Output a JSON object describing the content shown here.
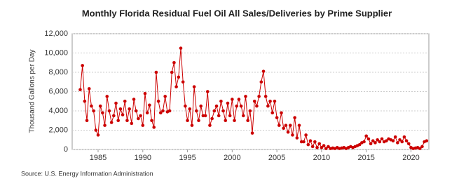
{
  "chart_data": {
    "type": "line",
    "title": "Monthly Florida Residual Fuel Oil All Sales/Deliveries by Prime Supplier",
    "y_label": "Thousand Gallons per Day",
    "source": "Source: U.S. Energy Information Administration",
    "color": "#cc0000",
    "grid": true,
    "xlim": [
      1982.1,
      2022
    ],
    "xticks": [
      1985,
      1990,
      1995,
      2000,
      2005,
      2010,
      2015,
      2020
    ],
    "ylim": [
      0,
      12000
    ],
    "yticks": [
      {
        "value": 0,
        "label": "0"
      },
      {
        "value": 2000,
        "label": "2,000"
      },
      {
        "value": 4000,
        "label": "4,000"
      },
      {
        "value": 6000,
        "label": "6,000"
      },
      {
        "value": 8000,
        "label": "8,000"
      },
      {
        "value": 10000,
        "label": "10,000"
      },
      {
        "value": 12000,
        "label": "12,000"
      }
    ],
    "x": [
      1983,
      1983.25,
      1983.5,
      1983.75,
      1984,
      1984.25,
      1984.5,
      1984.75,
      1985,
      1985.25,
      1985.5,
      1985.75,
      1986,
      1986.25,
      1986.5,
      1986.75,
      1987,
      1987.25,
      1987.5,
      1987.75,
      1988,
      1988.25,
      1988.5,
      1988.75,
      1989,
      1989.25,
      1989.5,
      1989.75,
      1990,
      1990.25,
      1990.5,
      1990.75,
      1991,
      1991.25,
      1991.5,
      1991.75,
      1992,
      1992.25,
      1992.5,
      1992.75,
      1993,
      1993.25,
      1993.5,
      1993.75,
      1994,
      1994.25,
      1994.5,
      1994.75,
      1995,
      1995.25,
      1995.5,
      1995.75,
      1996,
      1996.25,
      1996.5,
      1996.75,
      1997,
      1997.25,
      1997.5,
      1997.75,
      1998,
      1998.25,
      1998.5,
      1998.75,
      1999,
      1999.25,
      1999.5,
      1999.75,
      2000,
      2000.25,
      2000.5,
      2000.75,
      2001,
      2001.25,
      2001.5,
      2001.75,
      2002,
      2002.25,
      2002.5,
      2002.75,
      2003,
      2003.25,
      2003.5,
      2003.75,
      2004,
      2004.25,
      2004.5,
      2004.75,
      2005,
      2005.25,
      2005.5,
      2005.75,
      2006,
      2006.25,
      2006.5,
      2006.75,
      2007,
      2007.25,
      2007.5,
      2007.75,
      2008,
      2008.25,
      2008.5,
      2008.75,
      2009,
      2009.25,
      2009.5,
      2009.75,
      2010,
      2010.25,
      2010.5,
      2010.75,
      2011,
      2011.25,
      2011.5,
      2011.75,
      2012,
      2012.25,
      2012.5,
      2012.75,
      2013,
      2013.25,
      2013.5,
      2013.75,
      2014,
      2014.25,
      2014.5,
      2014.75,
      2015,
      2015.25,
      2015.5,
      2015.75,
      2016,
      2016.25,
      2016.5,
      2016.75,
      2017,
      2017.25,
      2017.5,
      2017.75,
      2018,
      2018.25,
      2018.5,
      2018.75,
      2019,
      2019.25,
      2019.5,
      2019.75,
      2020,
      2020.25,
      2020.5,
      2020.75,
      2021,
      2021.25,
      2021.5,
      2021.75
    ],
    "values": [
      6200,
      8700,
      5000,
      3000,
      6300,
      4500,
      4000,
      2000,
      1500,
      4500,
      3800,
      2500,
      5500,
      4000,
      2800,
      3500,
      4800,
      3000,
      4200,
      3600,
      5000,
      3000,
      4200,
      2700,
      5200,
      4000,
      3200,
      3500,
      2500,
      5800,
      3800,
      4600,
      3000,
      2300,
      8000,
      5000,
      3800,
      4000,
      5500,
      3900,
      4000,
      8000,
      9000,
      6500,
      7500,
      10500,
      7000,
      4500,
      3000,
      4200,
      2500,
      6500,
      4000,
      3000,
      4500,
      3500,
      3500,
      6000,
      2500,
      3200,
      4000,
      4500,
      3500,
      5000,
      4000,
      3000,
      4800,
      3500,
      5200,
      3000,
      4500,
      5200,
      4500,
      3500,
      5500,
      3000,
      4000,
      1700,
      5000,
      4500,
      5500,
      7000,
      8100,
      5500,
      4500,
      5000,
      3800,
      5000,
      3300,
      2500,
      3800,
      2200,
      2500,
      1800,
      2500,
      1500,
      3300,
      1200,
      2500,
      800,
      800,
      1500,
      500,
      900,
      300,
      800,
      200,
      600,
      200,
      400,
      100,
      300,
      100,
      150,
      100,
      200,
      100,
      150,
      200,
      100,
      200,
      300,
      200,
      300,
      400,
      500,
      700,
      800,
      1400,
      1100,
      600,
      900,
      700,
      1000,
      800,
      1100,
      800,
      900,
      1100,
      1000,
      900,
      1300,
      700,
      1000,
      800,
      1300,
      900,
      600,
      200,
      100,
      150,
      200,
      100,
      300,
      800,
      900
    ]
  }
}
